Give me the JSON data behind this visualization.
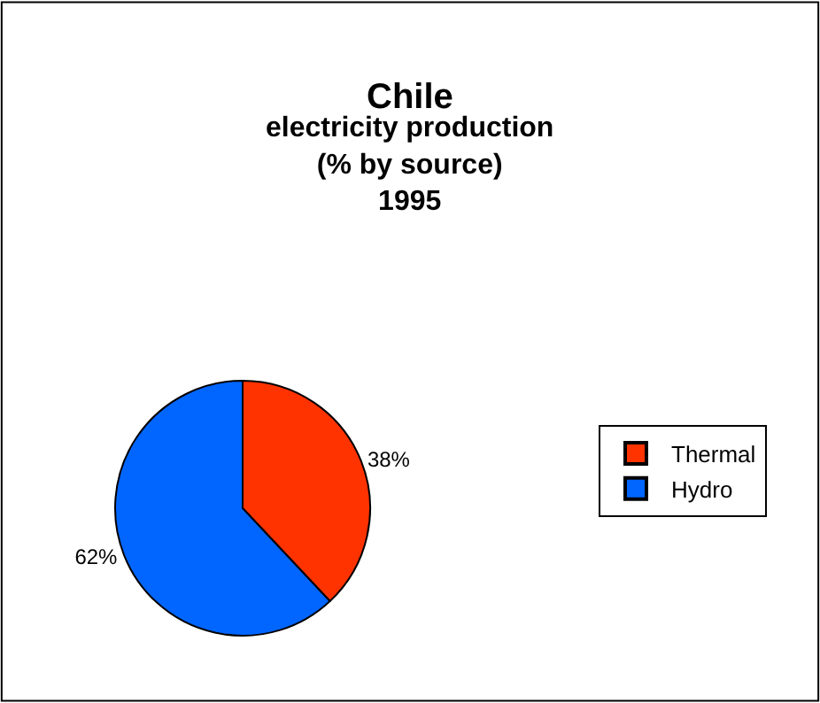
{
  "chart_data": {
    "type": "pie",
    "title": "Chile",
    "subtitle": "electricity production\n(% by source)\n1995",
    "categories": [
      "Thermal",
      "Hydro"
    ],
    "values": [
      38,
      62
    ],
    "colors": [
      "#ff3300",
      "#0066ff"
    ],
    "value_labels": [
      "38%",
      "62%"
    ],
    "legend": "right"
  }
}
